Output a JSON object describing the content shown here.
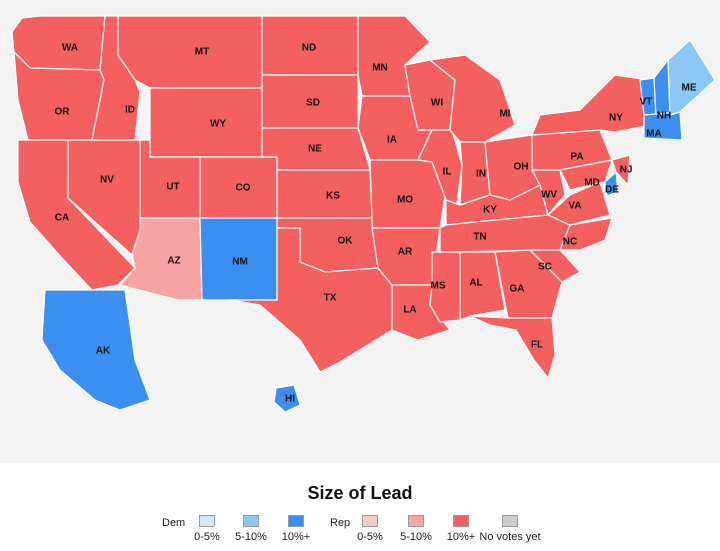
{
  "colors": {
    "background": "#f3f3f3",
    "border": "#ffffff",
    "dem_0_5": "#cfe8fb",
    "dem_5_10": "#8cc8f6",
    "dem_10_plus": "#3a8ff0",
    "rep_0_5": "#f9c9c9",
    "rep_5_10": "#f7a3a3",
    "rep_10_plus": "#f45f5f",
    "no_votes": "#cccccc"
  },
  "states": [
    {
      "abbr": "WA",
      "lead": "rep_10_plus"
    },
    {
      "abbr": "OR",
      "lead": "rep_10_plus"
    },
    {
      "abbr": "CA",
      "lead": "rep_10_plus"
    },
    {
      "abbr": "NV",
      "lead": "rep_10_plus"
    },
    {
      "abbr": "ID",
      "lead": "rep_10_plus"
    },
    {
      "abbr": "MT",
      "lead": "rep_10_plus"
    },
    {
      "abbr": "WY",
      "lead": "rep_10_plus"
    },
    {
      "abbr": "UT",
      "lead": "rep_10_plus"
    },
    {
      "abbr": "AZ",
      "lead": "rep_5_10"
    },
    {
      "abbr": "CO",
      "lead": "rep_10_plus"
    },
    {
      "abbr": "NM",
      "lead": "dem_10_plus"
    },
    {
      "abbr": "ND",
      "lead": "rep_10_plus"
    },
    {
      "abbr": "SD",
      "lead": "rep_10_plus"
    },
    {
      "abbr": "NE",
      "lead": "rep_10_plus"
    },
    {
      "abbr": "KS",
      "lead": "rep_10_plus"
    },
    {
      "abbr": "OK",
      "lead": "rep_10_plus"
    },
    {
      "abbr": "TX",
      "lead": "rep_10_plus"
    },
    {
      "abbr": "MN",
      "lead": "rep_10_plus"
    },
    {
      "abbr": "IA",
      "lead": "rep_10_plus"
    },
    {
      "abbr": "MO",
      "lead": "rep_10_plus"
    },
    {
      "abbr": "AR",
      "lead": "rep_10_plus"
    },
    {
      "abbr": "LA",
      "lead": "rep_10_plus"
    },
    {
      "abbr": "WI",
      "lead": "rep_10_plus"
    },
    {
      "abbr": "IL",
      "lead": "rep_10_plus"
    },
    {
      "abbr": "MI",
      "lead": "rep_10_plus"
    },
    {
      "abbr": "IN",
      "lead": "rep_10_plus"
    },
    {
      "abbr": "OH",
      "lead": "rep_10_plus"
    },
    {
      "abbr": "KY",
      "lead": "rep_10_plus"
    },
    {
      "abbr": "TN",
      "lead": "rep_10_plus"
    },
    {
      "abbr": "MS",
      "lead": "rep_10_plus"
    },
    {
      "abbr": "AL",
      "lead": "rep_10_plus"
    },
    {
      "abbr": "GA",
      "lead": "rep_10_plus"
    },
    {
      "abbr": "FL",
      "lead": "rep_10_plus"
    },
    {
      "abbr": "SC",
      "lead": "rep_10_plus"
    },
    {
      "abbr": "NC",
      "lead": "rep_10_plus"
    },
    {
      "abbr": "VA",
      "lead": "rep_10_plus"
    },
    {
      "abbr": "WV",
      "lead": "rep_10_plus"
    },
    {
      "abbr": "PA",
      "lead": "rep_10_plus"
    },
    {
      "abbr": "NY",
      "lead": "rep_10_plus"
    },
    {
      "abbr": "MD",
      "lead": "rep_10_plus"
    },
    {
      "abbr": "DE",
      "lead": "dem_10_plus"
    },
    {
      "abbr": "NJ",
      "lead": "rep_10_plus"
    },
    {
      "abbr": "VT",
      "lead": "dem_10_plus"
    },
    {
      "abbr": "NH",
      "lead": "dem_10_plus"
    },
    {
      "abbr": "MA",
      "lead": "dem_10_plus"
    },
    {
      "abbr": "ME",
      "lead": "dem_5_10"
    },
    {
      "abbr": "AK",
      "lead": "dem_10_plus"
    },
    {
      "abbr": "HI",
      "lead": "dem_10_plus"
    }
  ],
  "legend": {
    "title": "Size of Lead",
    "groups": [
      {
        "name": "Dem",
        "items": [
          {
            "label": "0-5%",
            "color": "#cfe8fb"
          },
          {
            "label": "5-10%",
            "color": "#8cc8f6"
          },
          {
            "label": "10%+",
            "color": "#3a8ff0"
          }
        ]
      },
      {
        "name": "Rep",
        "items": [
          {
            "label": "0-5%",
            "color": "#f9c9c9"
          },
          {
            "label": "5-10%",
            "color": "#f7a3a3"
          },
          {
            "label": "10%+",
            "color": "#f45f5f"
          },
          {
            "label": "No votes yet",
            "color": "#cccccc"
          }
        ]
      }
    ]
  }
}
